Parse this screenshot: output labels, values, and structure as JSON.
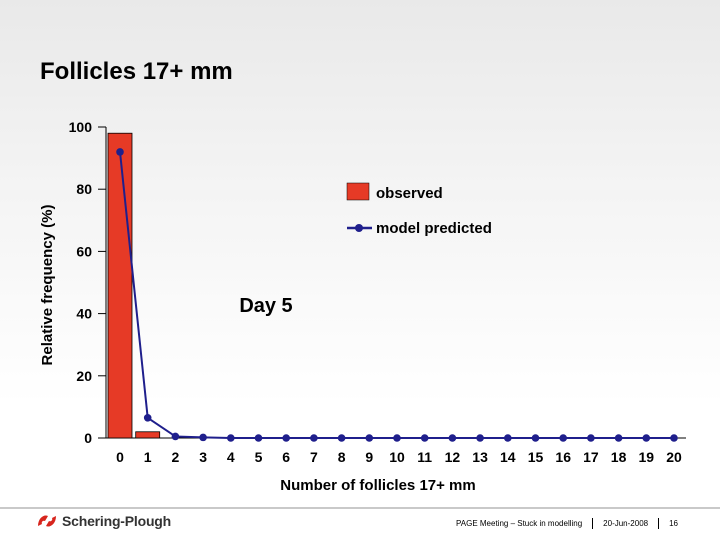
{
  "slide": {
    "title": "Follicles 17+ mm",
    "footer_meeting": "PAGE Meeting – Stuck in modelling",
    "footer_date": "20-Jun-2008",
    "footer_page": "16",
    "logo_text": "Schering-Plough"
  },
  "chart_data": {
    "type": "bar",
    "annotation": "Day 5",
    "xlabel": "Number of follicles 17+ mm",
    "ylabel": "Relative frequency (%)",
    "ylim": [
      0,
      100
    ],
    "yticks": [
      0,
      20,
      40,
      60,
      80,
      100
    ],
    "categories": [
      "0",
      "1",
      "2",
      "3",
      "4",
      "5",
      "6",
      "7",
      "8",
      "9",
      "10",
      "11",
      "12",
      "13",
      "14",
      "15",
      "16",
      "17",
      "18",
      "19",
      "20"
    ],
    "legend": {
      "observed": "observed",
      "predicted": "model predicted",
      "placement": "top-right"
    },
    "series": [
      {
        "name": "observed",
        "kind": "bar",
        "color": "#e63a26",
        "values": [
          98,
          2,
          0,
          0,
          0,
          0,
          0,
          0,
          0,
          0,
          0,
          0,
          0,
          0,
          0,
          0,
          0,
          0,
          0,
          0,
          0
        ]
      },
      {
        "name": "model predicted",
        "kind": "line",
        "color": "#1f1f8c",
        "values": [
          92,
          6.5,
          0.5,
          0.2,
          0,
          0,
          0,
          0,
          0,
          0,
          0,
          0,
          0,
          0,
          0,
          0,
          0,
          0,
          0,
          0,
          0
        ]
      }
    ]
  }
}
